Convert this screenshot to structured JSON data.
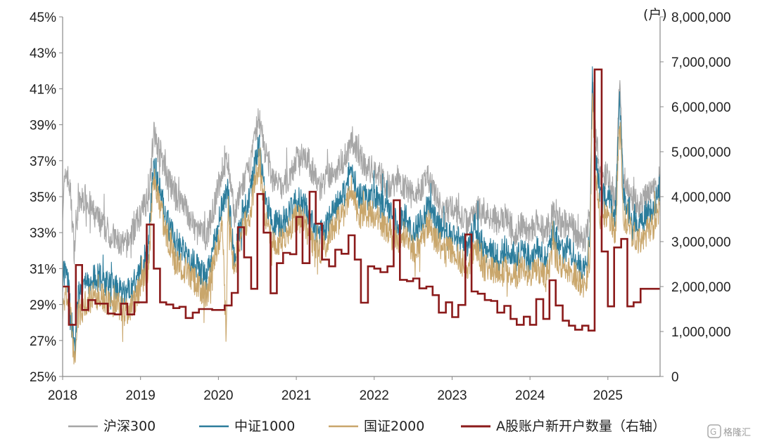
{
  "chart_data": {
    "type": "line",
    "title": "",
    "x_ticks": [
      "2018",
      "2019",
      "2020",
      "2021",
      "2022",
      "2023",
      "2024",
      "2025"
    ],
    "x_range": [
      2018,
      2025.67
    ],
    "y_left": {
      "range": [
        25,
        45
      ],
      "ticks": [
        25,
        27,
        29,
        31,
        33,
        35,
        37,
        39,
        41,
        43,
        45
      ],
      "tick_labels": [
        "25%",
        "27%",
        "29%",
        "31%",
        "33%",
        "35%",
        "37%",
        "39%",
        "41%",
        "43%",
        "45%"
      ]
    },
    "y_right": {
      "range": [
        0,
        8000000
      ],
      "ticks": [
        0,
        1000000,
        2000000,
        3000000,
        4000000,
        5000000,
        6000000,
        7000000,
        8000000
      ],
      "tick_labels": [
        "0",
        "1,000,000",
        "2,000,000",
        "3,000,000",
        "4,000,000",
        "5,000,000",
        "6,000,000",
        "7,000,000",
        "8,000,000"
      ],
      "unit": "(户)"
    },
    "grid": false,
    "legend_position": "bottom",
    "series": [
      {
        "name": "沪深300",
        "axis": "left",
        "color": "#a6a6a6",
        "x": [
          2018.0,
          2018.05,
          2018.1,
          2018.15,
          2018.2,
          2018.3,
          2018.4,
          2018.5,
          2018.6,
          2018.7,
          2018.8,
          2018.9,
          2019.0,
          2019.1,
          2019.17,
          2019.25,
          2019.35,
          2019.45,
          2019.55,
          2019.65,
          2019.75,
          2019.85,
          2019.95,
          2020.05,
          2020.12,
          2020.2,
          2020.3,
          2020.4,
          2020.52,
          2020.6,
          2020.7,
          2020.8,
          2020.9,
          2021.0,
          2021.1,
          2021.2,
          2021.3,
          2021.4,
          2021.5,
          2021.6,
          2021.7,
          2021.8,
          2021.9,
          2022.0,
          2022.1,
          2022.2,
          2022.3,
          2022.4,
          2022.5,
          2022.6,
          2022.7,
          2022.8,
          2022.9,
          2023.0,
          2023.1,
          2023.2,
          2023.3,
          2023.4,
          2023.5,
          2023.6,
          2023.7,
          2023.8,
          2023.9,
          2024.0,
          2024.08,
          2024.2,
          2024.3,
          2024.4,
          2024.5,
          2024.6,
          2024.7,
          2024.77,
          2024.8,
          2024.85,
          2024.9,
          2025.0,
          2025.1,
          2025.15,
          2025.2,
          2025.3,
          2025.4,
          2025.5,
          2025.6,
          2025.67
        ],
        "y": [
          34.5,
          36.5,
          35.2,
          32.0,
          34.5,
          35.0,
          34.0,
          33.5,
          33.0,
          32.5,
          32.2,
          33.0,
          34.0,
          35.0,
          38.5,
          37.5,
          36.0,
          35.0,
          34.8,
          33.5,
          33.0,
          32.8,
          34.5,
          36.5,
          37.0,
          34.0,
          35.5,
          36.5,
          39.5,
          37.5,
          36.0,
          35.5,
          36.0,
          37.0,
          37.5,
          36.5,
          35.5,
          36.0,
          36.5,
          37.0,
          38.0,
          37.5,
          36.5,
          36.5,
          36.0,
          35.5,
          36.0,
          35.5,
          35.0,
          35.5,
          36.0,
          35.0,
          34.0,
          34.5,
          34.0,
          33.5,
          34.5,
          34.0,
          34.0,
          33.5,
          33.8,
          33.0,
          33.5,
          33.0,
          33.5,
          33.0,
          34.0,
          33.5,
          33.5,
          33.0,
          32.5,
          34.0,
          42.0,
          38.0,
          36.5,
          36.0,
          35.0,
          41.5,
          36.0,
          35.0,
          34.5,
          35.0,
          35.5,
          36.0
        ]
      },
      {
        "name": "中证1000",
        "axis": "left",
        "color": "#2b7c9b",
        "x": [
          2018.0,
          2018.05,
          2018.1,
          2018.15,
          2018.2,
          2018.3,
          2018.4,
          2018.5,
          2018.6,
          2018.7,
          2018.8,
          2018.9,
          2019.0,
          2019.1,
          2019.17,
          2019.25,
          2019.35,
          2019.45,
          2019.55,
          2019.65,
          2019.75,
          2019.85,
          2019.95,
          2020.05,
          2020.12,
          2020.2,
          2020.3,
          2020.4,
          2020.52,
          2020.6,
          2020.7,
          2020.8,
          2020.9,
          2021.0,
          2021.1,
          2021.2,
          2021.3,
          2021.4,
          2021.5,
          2021.6,
          2021.7,
          2021.8,
          2021.9,
          2022.0,
          2022.1,
          2022.2,
          2022.3,
          2022.4,
          2022.5,
          2022.6,
          2022.7,
          2022.8,
          2022.9,
          2023.0,
          2023.1,
          2023.2,
          2023.3,
          2023.4,
          2023.5,
          2023.6,
          2023.7,
          2023.8,
          2023.9,
          2024.0,
          2024.08,
          2024.2,
          2024.3,
          2024.4,
          2024.5,
          2024.6,
          2024.7,
          2024.77,
          2024.8,
          2024.85,
          2024.9,
          2025.0,
          2025.1,
          2025.15,
          2025.2,
          2025.3,
          2025.4,
          2025.5,
          2025.6,
          2025.67
        ],
        "y": [
          30.5,
          31.0,
          29.0,
          26.5,
          29.5,
          30.0,
          30.5,
          30.5,
          30.0,
          30.0,
          29.5,
          30.0,
          31.0,
          32.0,
          37.0,
          35.5,
          33.5,
          32.5,
          32.0,
          31.5,
          31.0,
          30.5,
          32.5,
          34.5,
          35.5,
          31.5,
          34.0,
          35.0,
          38.0,
          35.0,
          33.5,
          33.5,
          34.0,
          35.0,
          34.5,
          33.5,
          33.0,
          33.5,
          34.5,
          35.0,
          36.5,
          35.0,
          35.0,
          35.0,
          34.5,
          34.0,
          33.5,
          34.0,
          33.0,
          33.5,
          34.5,
          33.5,
          33.0,
          33.0,
          32.5,
          32.0,
          33.5,
          32.0,
          32.0,
          31.5,
          32.0,
          31.5,
          32.0,
          31.5,
          32.0,
          31.5,
          33.0,
          32.0,
          32.0,
          31.5,
          31.0,
          32.5,
          41.5,
          37.0,
          35.0,
          35.0,
          34.0,
          40.5,
          35.0,
          34.0,
          33.5,
          34.0,
          34.5,
          35.5
        ]
      },
      {
        "name": "国证2000",
        "axis": "left",
        "color": "#c9a66b",
        "x": [
          2018.0,
          2018.05,
          2018.1,
          2018.15,
          2018.2,
          2018.3,
          2018.4,
          2018.5,
          2018.6,
          2018.7,
          2018.8,
          2018.9,
          2019.0,
          2019.1,
          2019.17,
          2019.25,
          2019.35,
          2019.45,
          2019.55,
          2019.65,
          2019.75,
          2019.85,
          2019.95,
          2020.05,
          2020.1,
          2020.12,
          2020.2,
          2020.3,
          2020.4,
          2020.52,
          2020.6,
          2020.7,
          2020.8,
          2020.9,
          2021.0,
          2021.1,
          2021.2,
          2021.3,
          2021.4,
          2021.5,
          2021.6,
          2021.7,
          2021.8,
          2021.9,
          2022.0,
          2022.1,
          2022.2,
          2022.3,
          2022.4,
          2022.5,
          2022.6,
          2022.7,
          2022.8,
          2022.9,
          2023.0,
          2023.1,
          2023.2,
          2023.3,
          2023.4,
          2023.5,
          2023.6,
          2023.7,
          2023.8,
          2023.9,
          2024.0,
          2024.08,
          2024.2,
          2024.3,
          2024.4,
          2024.5,
          2024.6,
          2024.7,
          2024.77,
          2024.8,
          2024.85,
          2024.9,
          2025.0,
          2025.1,
          2025.15,
          2025.2,
          2025.3,
          2025.4,
          2025.5,
          2025.6,
          2025.67
        ],
        "y": [
          29.0,
          29.5,
          28.5,
          25.8,
          28.5,
          29.0,
          29.5,
          29.5,
          29.0,
          29.0,
          28.5,
          29.0,
          30.0,
          31.0,
          36.0,
          34.5,
          32.5,
          31.5,
          31.0,
          30.5,
          30.0,
          29.5,
          31.5,
          33.5,
          27.0,
          34.5,
          31.0,
          33.0,
          34.0,
          37.0,
          34.0,
          32.5,
          32.5,
          33.0,
          34.0,
          33.5,
          32.5,
          32.0,
          32.5,
          33.5,
          34.0,
          35.5,
          34.0,
          34.0,
          34.0,
          33.5,
          33.0,
          32.5,
          33.0,
          32.0,
          32.5,
          33.5,
          32.5,
          32.0,
          32.0,
          31.5,
          31.0,
          32.5,
          31.0,
          31.0,
          30.5,
          31.0,
          30.5,
          31.0,
          30.5,
          31.0,
          30.5,
          32.0,
          31.0,
          31.0,
          30.5,
          30.0,
          31.5,
          40.5,
          36.0,
          34.0,
          34.0,
          33.0,
          39.5,
          34.0,
          33.0,
          32.5,
          33.0,
          33.5,
          34.5
        ]
      },
      {
        "name": "A股账户新开户数量（右轴）",
        "axis": "right",
        "color": "#8b1a1a",
        "step": true,
        "x": [
          2018.0,
          2018.08,
          2018.17,
          2018.25,
          2018.33,
          2018.42,
          2018.5,
          2018.58,
          2018.67,
          2018.75,
          2018.83,
          2018.92,
          2019.0,
          2019.08,
          2019.17,
          2019.25,
          2019.33,
          2019.42,
          2019.5,
          2019.58,
          2019.67,
          2019.75,
          2019.83,
          2019.92,
          2020.0,
          2020.08,
          2020.17,
          2020.25,
          2020.33,
          2020.42,
          2020.5,
          2020.58,
          2020.67,
          2020.75,
          2020.83,
          2020.92,
          2021.0,
          2021.08,
          2021.17,
          2021.25,
          2021.33,
          2021.42,
          2021.5,
          2021.58,
          2021.67,
          2021.75,
          2021.83,
          2021.92,
          2022.0,
          2022.08,
          2022.17,
          2022.25,
          2022.33,
          2022.42,
          2022.5,
          2022.58,
          2022.67,
          2022.75,
          2022.83,
          2022.92,
          2023.0,
          2023.08,
          2023.17,
          2023.25,
          2023.33,
          2023.42,
          2023.5,
          2023.58,
          2023.67,
          2023.75,
          2023.83,
          2023.92,
          2024.0,
          2024.08,
          2024.17,
          2024.25,
          2024.33,
          2024.42,
          2024.5,
          2024.58,
          2024.67,
          2024.75,
          2024.83,
          2024.92,
          2025.0,
          2025.08,
          2025.17,
          2025.25,
          2025.33,
          2025.42,
          2025.5,
          2025.58,
          2025.67
        ],
        "y": [
          2000000,
          1150000,
          2480000,
          1480000,
          1700000,
          1620000,
          1620000,
          1400000,
          1380000,
          1620000,
          1380000,
          1650000,
          1650000,
          3380000,
          2400000,
          1650000,
          1600000,
          1520000,
          1550000,
          1300000,
          1420000,
          1500000,
          1500000,
          1480000,
          1480000,
          1580000,
          1860000,
          3320000,
          2650000,
          1950000,
          4060000,
          3200000,
          1850000,
          2520000,
          2750000,
          2720000,
          3550000,
          2520000,
          4110000,
          3400000,
          2600000,
          2450000,
          2820000,
          2730000,
          3140000,
          2600000,
          1640000,
          2450000,
          2400000,
          2320000,
          2450000,
          3920000,
          2150000,
          2120000,
          2180000,
          1960000,
          2000000,
          1810000,
          1420000,
          1650000,
          1320000,
          1590000,
          3160000,
          1890000,
          1840000,
          1700000,
          1680000,
          1420000,
          1570000,
          1280000,
          1150000,
          1330000,
          1150000,
          1720000,
          1280000,
          2140000,
          1580000,
          1240000,
          1130000,
          1040000,
          1130000,
          1020000,
          6830000,
          2780000,
          1560000,
          2870000,
          3060000,
          1560000,
          1650000,
          1950000,
          1950000,
          1950000,
          1950000
        ]
      }
    ]
  },
  "watermark": "格隆汇"
}
